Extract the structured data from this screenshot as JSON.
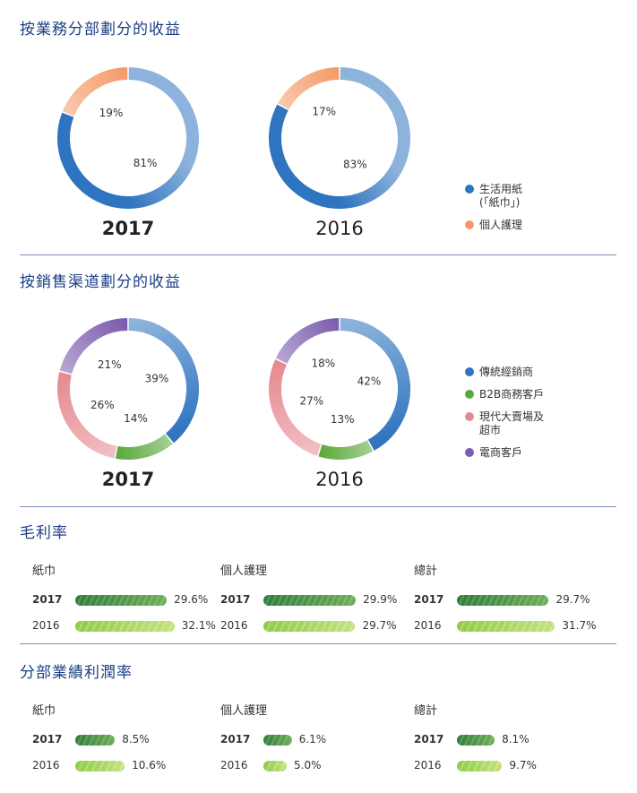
{
  "section_segment": {
    "title": "按業務分部劃分的收益"
  },
  "section_channel": {
    "title": "按銷售渠道劃分的收益"
  },
  "section_gross": {
    "title": "毛利率"
  },
  "section_op": {
    "title": "分部業績利潤率"
  },
  "legend_segment": [
    {
      "label": "生活用紙\n(「紙巾」)",
      "color": "#2f74c0"
    },
    {
      "label": "個人護理",
      "color": "#f59a68"
    }
  ],
  "legend_channel": [
    {
      "label": "傳統經銷商",
      "color": "#2f74c0"
    },
    {
      "label": "B2B商務客戶",
      "color": "#5aa83a"
    },
    {
      "label": "現代大賣場及\n超市",
      "color": "#e58a92"
    },
    {
      "label": "電商客戶",
      "color": "#7b5cae"
    }
  ],
  "chart_data": [
    {
      "type": "pie",
      "title": "2017",
      "group": "segment",
      "labels": [
        "生活用紙(「紙巾」)",
        "個人護理"
      ],
      "values": [
        81,
        19
      ],
      "value_labels": [
        "81%",
        "19%"
      ],
      "colors": [
        "#2f74c0",
        "#f59a68"
      ]
    },
    {
      "type": "pie",
      "title": "2016",
      "group": "segment",
      "labels": [
        "生活用紙(「紙巾」)",
        "個人護理"
      ],
      "values": [
        83,
        17
      ],
      "value_labels": [
        "83%",
        "17%"
      ],
      "colors": [
        "#2f74c0",
        "#f59a68"
      ]
    },
    {
      "type": "pie",
      "title": "2017",
      "group": "channel",
      "labels": [
        "傳統經銷商",
        "B2B商務客戶",
        "現代大賣場及超市",
        "電商客戶"
      ],
      "values": [
        39,
        14,
        26,
        21
      ],
      "value_labels": [
        "39%",
        "14%",
        "26%",
        "21%"
      ],
      "colors": [
        "#2f74c0",
        "#5aa83a",
        "#e58a92",
        "#7b5cae"
      ]
    },
    {
      "type": "pie",
      "title": "2016",
      "group": "channel",
      "labels": [
        "傳統經銷商",
        "B2B商務客戶",
        "現代大賣場及超市",
        "電商客戶"
      ],
      "values": [
        42,
        13,
        27,
        18
      ],
      "value_labels": [
        "42%",
        "13%",
        "27%",
        "18%"
      ],
      "colors": [
        "#2f74c0",
        "#5aa83a",
        "#e58a92",
        "#7b5cae"
      ]
    },
    {
      "type": "bar",
      "title": "毛利率",
      "groups": [
        "紙巾",
        "個人護理",
        "總計"
      ],
      "series": [
        {
          "name": "2017",
          "values": [
            29.6,
            29.9,
            29.7
          ],
          "value_labels": [
            "29.6%",
            "29.9%",
            "29.7%"
          ]
        },
        {
          "name": "2016",
          "values": [
            32.1,
            29.7,
            31.7
          ],
          "value_labels": [
            "32.1%",
            "29.7%",
            "31.7%"
          ]
        }
      ]
    },
    {
      "type": "bar",
      "title": "分部業績利潤率",
      "groups": [
        "紙巾",
        "個人護理",
        "總計"
      ],
      "series": [
        {
          "name": "2017",
          "values": [
            8.5,
            6.1,
            8.1
          ],
          "value_labels": [
            "8.5%",
            "6.1%",
            "8.1%"
          ]
        },
        {
          "name": "2016",
          "values": [
            10.6,
            5.0,
            9.7
          ],
          "value_labels": [
            "10.6%",
            "5.0%",
            "9.7%"
          ]
        }
      ]
    }
  ]
}
